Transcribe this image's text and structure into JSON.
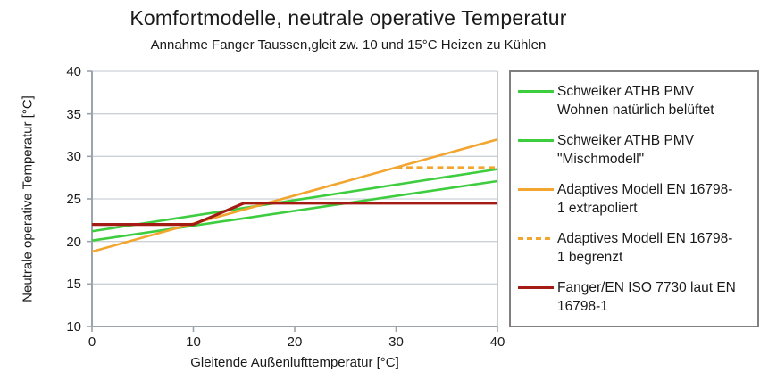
{
  "header": {
    "title": "Komfortmodelle, neutrale operative Temperatur",
    "subtitle": "Annahme Fanger Taussen,gleit zw. 10 und 15°C Heizen zu Kühlen"
  },
  "axes": {
    "x_title": "Gleitende Außenlufttemperatur [°C]",
    "y_title": "Neutrale operative Temperatur [°C]"
  },
  "colors": {
    "green": "#3ecd3e",
    "orange": "#f2a52f",
    "dark_red": "#a31b12",
    "gridline": "#ccd1d6",
    "axis": "#9aa4ac",
    "plot_right_border": "#aeb6bc",
    "legend_border": "#808080",
    "text": "#1a1a1a"
  },
  "legend": {
    "items": [
      {
        "line1": "Schweiker ATHB PMV",
        "line2": "Wohnen natürlich belüftet",
        "color": "#3ecd3e",
        "dashed": false
      },
      {
        "line1": "Schweiker ATHB PMV",
        "line2": "\"Mischmodell\"",
        "color": "#3ecd3e",
        "dashed": false
      },
      {
        "line1": "Adaptives Modell EN 16798-",
        "line2": "1 extrapoliert",
        "color": "#f2a52f",
        "dashed": false
      },
      {
        "line1": "Adaptives Modell EN 16798-",
        "line2": "1 begrenzt",
        "color": "#f2a52f",
        "dashed": true
      },
      {
        "line1": "Fanger/EN ISO 7730 laut EN",
        "line2": "16798-1",
        "color": "#a31b12",
        "dashed": false
      }
    ]
  },
  "chart_data": {
    "type": "line",
    "title": "Komfortmodelle, neutrale operative Temperatur",
    "subtitle": "Annahme Fanger Taussen,gleit zw. 10 und 15°C Heizen zu Kühlen",
    "xlabel": "Gleitende Außenlufttemperatur [°C]",
    "ylabel": "Neutrale operative Temperatur [°C]",
    "xlim": [
      0,
      40
    ],
    "ylim": [
      10,
      40
    ],
    "x_ticks": [
      0,
      10,
      20,
      30,
      40
    ],
    "y_ticks": [
      10,
      15,
      20,
      25,
      30,
      35,
      40
    ],
    "grid": "horizontal",
    "legend_position": "right",
    "series": [
      {
        "name": "Schweiker ATHB PMV Wohnen natürlich belüftet",
        "color": "#3ecd3e",
        "style": "solid",
        "width": 2.6,
        "points": [
          [
            0,
            21.2
          ],
          [
            40,
            28.5
          ]
        ]
      },
      {
        "name": "Schweiker ATHB PMV \"Mischmodell\"",
        "color": "#3ecd3e",
        "style": "solid",
        "width": 2.6,
        "points": [
          [
            0,
            20.1
          ],
          [
            40,
            27.1
          ]
        ]
      },
      {
        "name": "Adaptives Modell EN 16798-1 extrapoliert",
        "color": "#f2a52f",
        "style": "solid",
        "width": 2.6,
        "points": [
          [
            0,
            18.8
          ],
          [
            40,
            32.0
          ]
        ]
      },
      {
        "name": "Adaptives Modell EN 16798-1 begrenzt",
        "color": "#f2a52f",
        "style": "dashed",
        "width": 2.6,
        "points": [
          [
            30,
            28.7
          ],
          [
            40,
            28.7
          ]
        ]
      },
      {
        "name": "Fanger/EN ISO 7730 laut EN 16798-1",
        "color": "#a31b12",
        "style": "solid",
        "width": 3.2,
        "points": [
          [
            0,
            22.0
          ],
          [
            10,
            22.0
          ],
          [
            15,
            24.5
          ],
          [
            40,
            24.5
          ]
        ]
      }
    ]
  }
}
